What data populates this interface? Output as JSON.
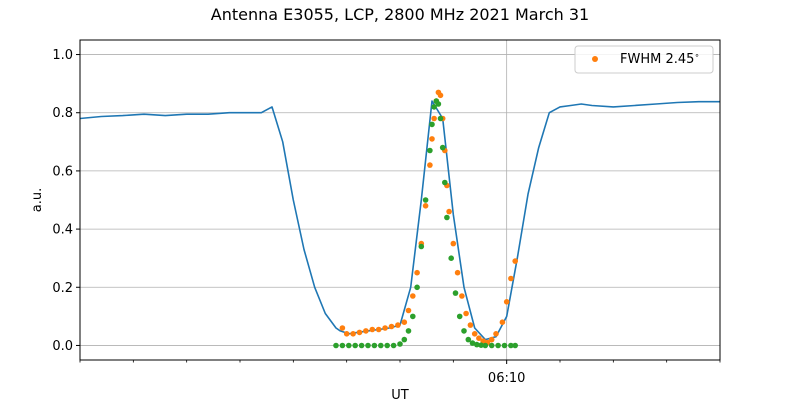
{
  "chart_data": {
    "type": "line",
    "title": "Antenna E3055, LCP, 2800 MHz 2021 March 31",
    "xlabel": "UT",
    "ylabel": "a.u.",
    "x_unit": "minutes",
    "xlim": [
      0,
      30
    ],
    "ylim": [
      -0.05,
      1.05
    ],
    "yticks": [
      0.0,
      0.2,
      0.4,
      0.6,
      0.8,
      1.0
    ],
    "ytick_labels": [
      "0.0",
      "0.2",
      "0.4",
      "0.6",
      "0.8",
      "1.0"
    ],
    "xticks": [
      0,
      2.5,
      5,
      7.5,
      10,
      12.5,
      15,
      17.5,
      20,
      22.5,
      25,
      27.5,
      30
    ],
    "xtick_labels": [
      "",
      "",
      "",
      "",
      "",
      "",
      "",
      "",
      "06:10",
      "",
      "",
      "",
      ""
    ],
    "grid": "horizontal lines plus vertical line at 06:10",
    "legend": {
      "position": "top-right",
      "entries": [
        "FWHM 2.45$^\\circ$"
      ]
    },
    "series": [
      {
        "role": "measured",
        "color": "#1f77b4",
        "style": "line",
        "x": [
          0,
          1,
          2,
          3,
          4,
          5,
          6,
          7,
          8,
          8.5,
          9.0,
          9.5,
          10.0,
          10.5,
          11.0,
          11.5,
          12.0,
          12.2,
          12.6,
          13.0,
          13.5,
          14.0,
          14.5,
          15.0,
          15.5,
          16.0,
          16.5,
          17.0,
          17.5,
          18.0,
          18.5,
          19.0,
          19.5,
          20.0,
          20.5,
          21.0,
          21.5,
          22.0,
          22.5,
          23.0,
          23.5,
          24.0,
          25.0,
          26.0,
          27.0,
          28.0,
          29.0,
          30.0
        ],
        "y": [
          0.78,
          0.787,
          0.79,
          0.795,
          0.79,
          0.795,
          0.795,
          0.8,
          0.8,
          0.8,
          0.82,
          0.7,
          0.5,
          0.33,
          0.2,
          0.11,
          0.06,
          0.05,
          0.04,
          0.045,
          0.05,
          0.055,
          0.06,
          0.07,
          0.2,
          0.5,
          0.84,
          0.78,
          0.45,
          0.2,
          0.06,
          0.02,
          0.03,
          0.1,
          0.3,
          0.52,
          0.68,
          0.8,
          0.82,
          0.825,
          0.83,
          0.825,
          0.82,
          0.825,
          0.83,
          0.835,
          0.838,
          0.838
        ]
      },
      {
        "name": "FWHM 2.45$^\\circ$",
        "color": "#ff7f0e",
        "style": "markers",
        "x": [
          12.3,
          12.5,
          12.8,
          13.1,
          13.4,
          13.7,
          14.0,
          14.3,
          14.6,
          14.9,
          15.2,
          15.4,
          15.6,
          15.8,
          16.0,
          16.2,
          16.4,
          16.5,
          16.6,
          16.7,
          16.8,
          16.9,
          17.0,
          17.1,
          17.2,
          17.3,
          17.5,
          17.7,
          17.9,
          18.1,
          18.3,
          18.5,
          18.7,
          18.9,
          19.1,
          19.3,
          19.5,
          19.8,
          20.0,
          20.2,
          20.4
        ],
        "y": [
          0.06,
          0.04,
          0.04,
          0.045,
          0.05,
          0.055,
          0.055,
          0.06,
          0.065,
          0.07,
          0.08,
          0.12,
          0.17,
          0.25,
          0.35,
          0.48,
          0.62,
          0.71,
          0.78,
          0.84,
          0.87,
          0.86,
          0.78,
          0.67,
          0.55,
          0.46,
          0.35,
          0.25,
          0.17,
          0.11,
          0.07,
          0.04,
          0.025,
          0.015,
          0.01,
          0.02,
          0.04,
          0.08,
          0.15,
          0.23,
          0.29
        ]
      },
      {
        "role": "fit",
        "color": "#2ca02c",
        "style": "markers",
        "x": [
          12.0,
          12.3,
          12.6,
          12.9,
          13.2,
          13.5,
          13.8,
          14.1,
          14.4,
          14.7,
          15.0,
          15.2,
          15.4,
          15.6,
          15.8,
          16.0,
          16.2,
          16.4,
          16.5,
          16.6,
          16.7,
          16.8,
          16.9,
          17.0,
          17.1,
          17.2,
          17.4,
          17.6,
          17.8,
          18.0,
          18.2,
          18.4,
          18.6,
          18.8,
          19.0,
          19.3,
          19.6,
          19.9,
          20.2,
          20.4
        ],
        "y": [
          0.0,
          0.0,
          0.0,
          0.0,
          0.0,
          0.0,
          0.0,
          0.0,
          0.0,
          0.0,
          0.005,
          0.02,
          0.05,
          0.1,
          0.2,
          0.34,
          0.5,
          0.67,
          0.76,
          0.82,
          0.84,
          0.83,
          0.78,
          0.68,
          0.56,
          0.44,
          0.3,
          0.18,
          0.1,
          0.05,
          0.02,
          0.008,
          0.003,
          0.001,
          0.0,
          0.0,
          0.0,
          0.0,
          0.0,
          0.0
        ]
      }
    ]
  }
}
